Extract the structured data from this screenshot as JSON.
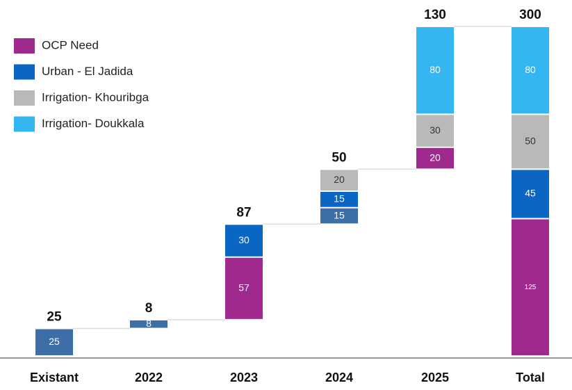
{
  "chart_data": {
    "type": "waterfall",
    "legend": [
      {
        "name": "OCP Need",
        "color": "#a0298e"
      },
      {
        "name": "Urban - El Jadida",
        "color": "#0b65c2"
      },
      {
        "name": "Irrigation- Khouribga",
        "color": "#b9b9b9"
      },
      {
        "name": "Irrigation- Doukkala",
        "color": "#33b6f2"
      }
    ],
    "categories": [
      "Existant",
      "2022",
      "2023",
      "2024",
      "2025",
      "Total"
    ],
    "totals": [
      25,
      8,
      87,
      50,
      130,
      300
    ],
    "segments": [
      [
        {
          "value": 25,
          "color": "#3d6ea8"
        }
      ],
      [
        {
          "value": 8,
          "color": "#3d6ea8"
        }
      ],
      [
        {
          "value": 57,
          "color": "#a0298e"
        },
        {
          "value": 30,
          "color": "#0b65c2"
        }
      ],
      [
        {
          "value": 15,
          "color": "#3d6ea8"
        },
        {
          "value": 15,
          "color": "#0b65c2"
        },
        {
          "value": 20,
          "color": "#b9b9b9"
        }
      ],
      [
        {
          "value": 20,
          "color": "#a0298e"
        },
        {
          "value": 30,
          "color": "#b9b9b9"
        },
        {
          "value": 80,
          "color": "#33b6f2"
        }
      ],
      [
        {
          "value": 125,
          "color": "#a0298e"
        },
        {
          "value": 45,
          "color": "#0b65c2"
        },
        {
          "value": 50,
          "color": "#b9b9b9"
        },
        {
          "value": 80,
          "color": "#33b6f2"
        }
      ]
    ]
  }
}
